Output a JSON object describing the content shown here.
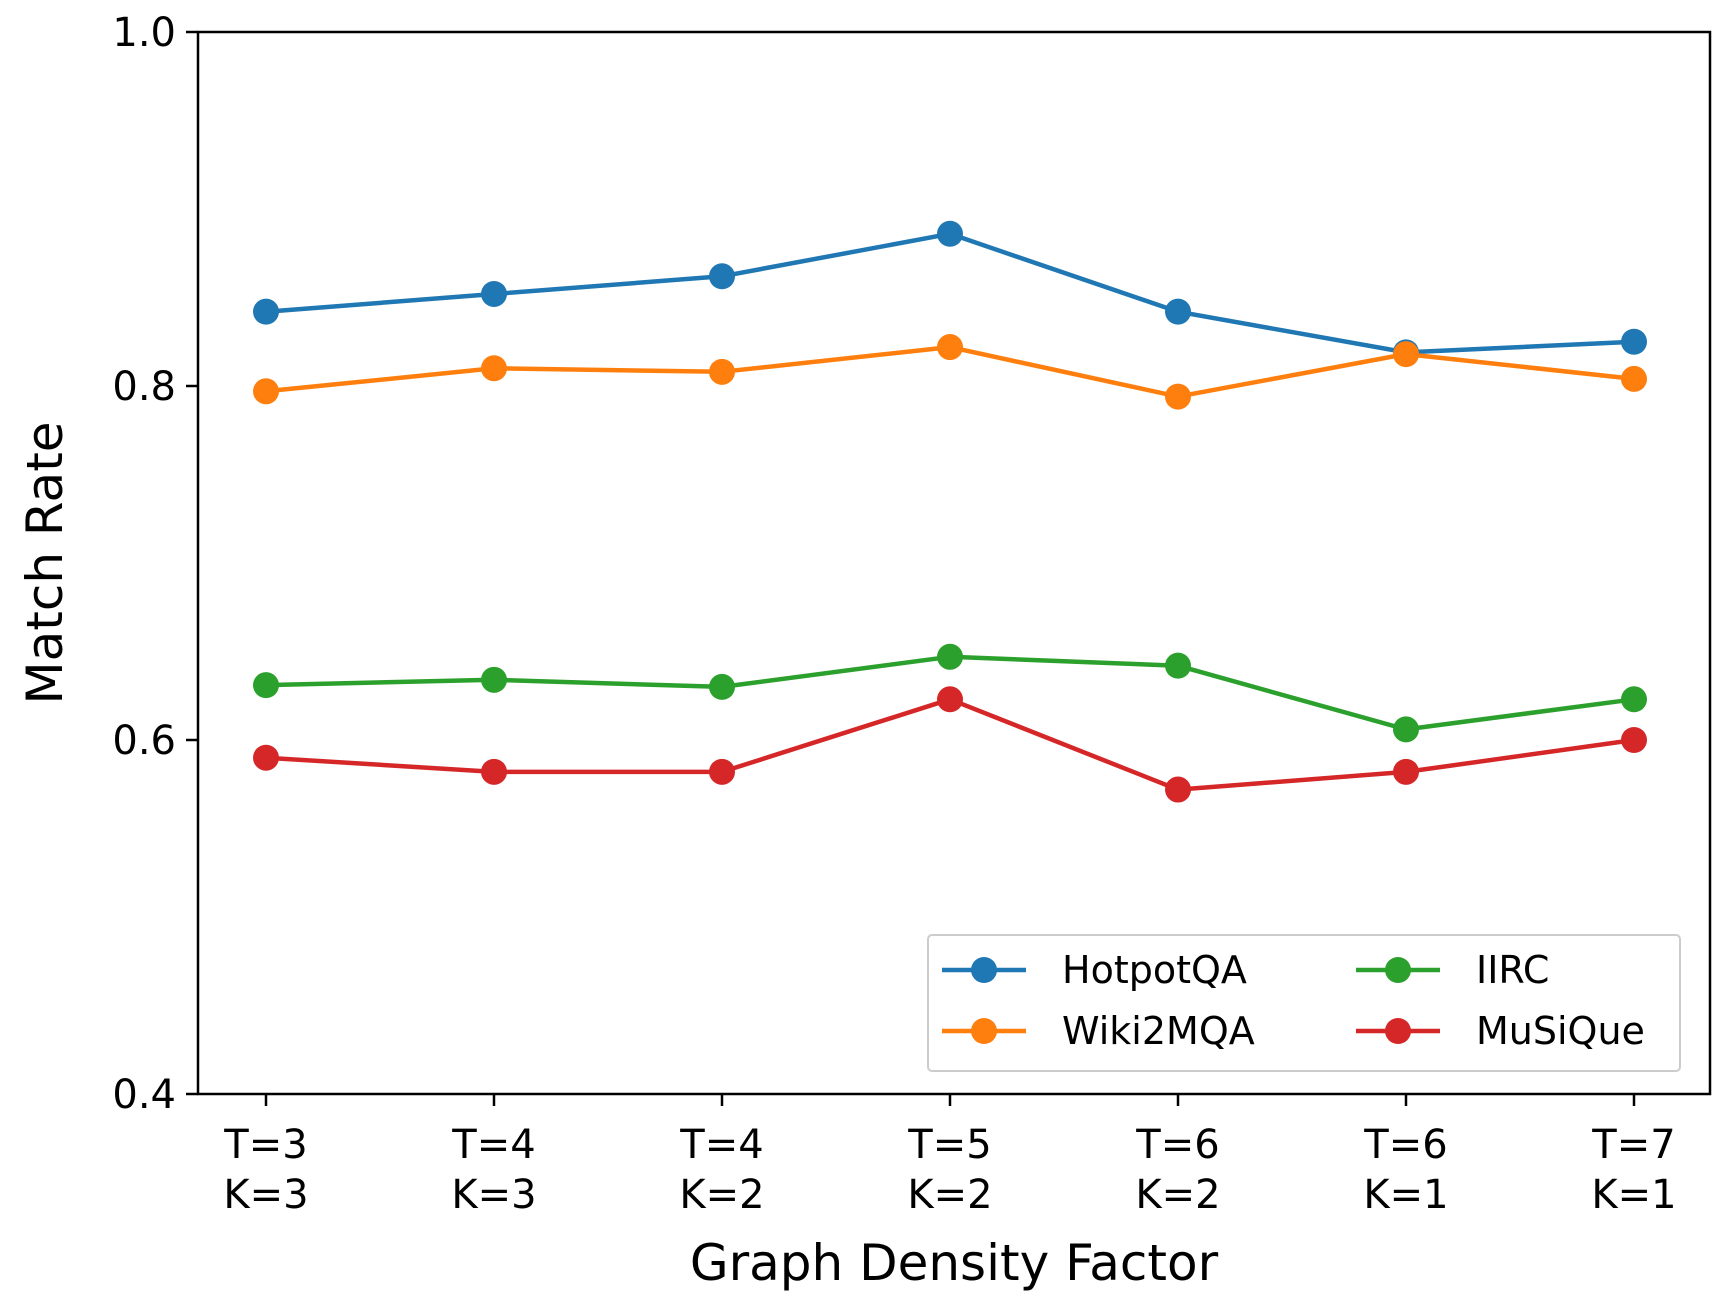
{
  "chart_data": {
    "type": "line",
    "title": "",
    "xlabel": "Graph Density Factor",
    "ylabel": "Match Rate",
    "categories": [
      [
        "T=3",
        "K=3"
      ],
      [
        "T=4",
        "K=3"
      ],
      [
        "T=4",
        "K=2"
      ],
      [
        "T=5",
        "K=2"
      ],
      [
        "T=6",
        "K=2"
      ],
      [
        "T=6",
        "K=1"
      ],
      [
        "T=7",
        "K=1"
      ]
    ],
    "ylim": [
      0.4,
      1.0
    ],
    "yticks": [
      0.4,
      0.6,
      0.8,
      1.0
    ],
    "ytick_labels": [
      "0.4",
      "0.6",
      "0.8",
      "1.0"
    ],
    "grid": false,
    "legend_position": "lower-right",
    "legend_columns": 2,
    "series": [
      {
        "name": "HotpotQA",
        "color": "#1f77b4",
        "values": [
          0.842,
          0.852,
          0.862,
          0.886,
          0.842,
          0.819,
          0.825
        ]
      },
      {
        "name": "Wiki2MQA",
        "color": "#ff7f0e",
        "values": [
          0.797,
          0.81,
          0.808,
          0.822,
          0.794,
          0.818,
          0.804
        ]
      },
      {
        "name": "IIRC",
        "color": "#2ca02c",
        "values": [
          0.631,
          0.634,
          0.63,
          0.647,
          0.642,
          0.606,
          0.623
        ]
      },
      {
        "name": "MuSiQue",
        "color": "#d62728",
        "values": [
          0.59,
          0.582,
          0.582,
          0.623,
          0.572,
          0.582,
          0.6
        ]
      }
    ]
  }
}
